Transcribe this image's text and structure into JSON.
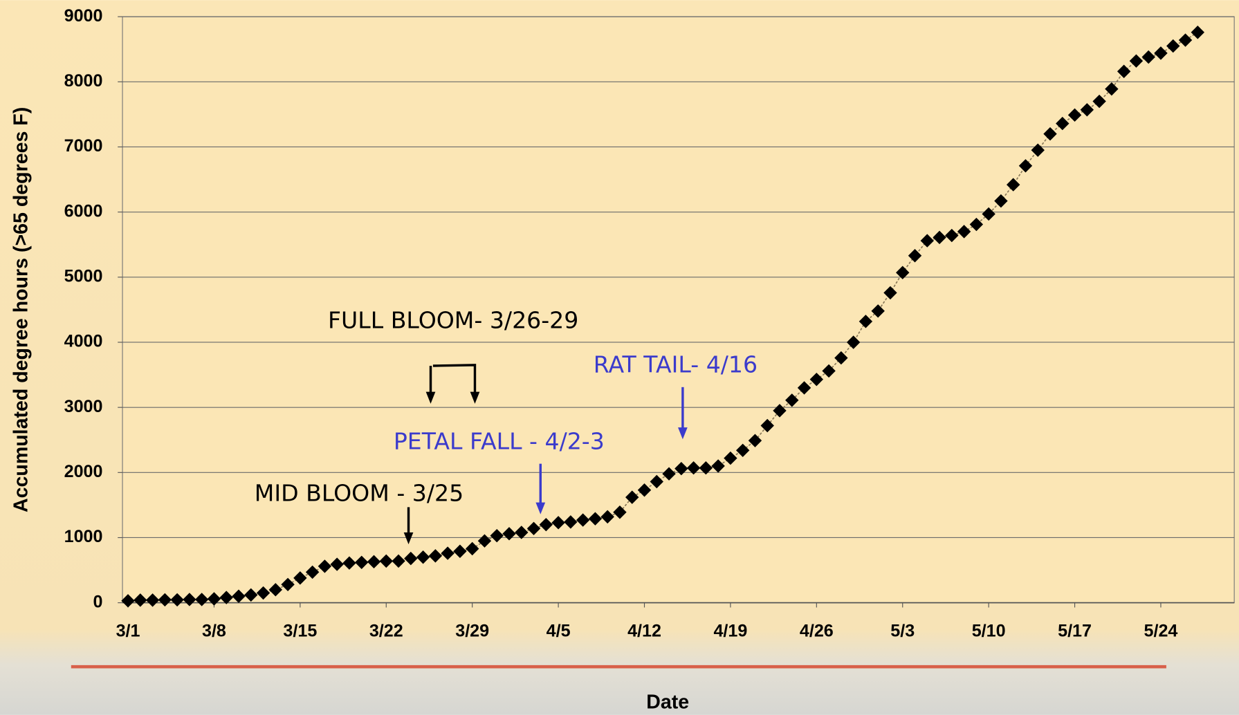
{
  "chart_data": {
    "type": "line",
    "x_label": "Date",
    "y_label": "Accumulated degree hours (>65 degrees F)",
    "categories": [
      "3/1",
      null,
      null,
      null,
      null,
      null,
      null,
      "3/8",
      null,
      null,
      null,
      null,
      null,
      null,
      "3/15",
      null,
      null,
      null,
      null,
      null,
      null,
      "3/22",
      null,
      null,
      null,
      null,
      null,
      null,
      "3/29",
      null,
      null,
      null,
      null,
      null,
      null,
      "4/5",
      null,
      null,
      null,
      null,
      null,
      null,
      "4/12",
      null,
      null,
      null,
      null,
      null,
      null,
      "4/19",
      null,
      null,
      null,
      null,
      null,
      null,
      "4/26",
      null,
      null,
      null,
      null,
      null,
      null,
      "5/3",
      null,
      null,
      null,
      null,
      null,
      null,
      "5/10",
      null,
      null,
      null,
      null,
      null,
      null,
      "5/17",
      null,
      null,
      null,
      null,
      null,
      null,
      "5/24",
      null,
      null,
      null
    ],
    "series": [
      {
        "name": "Accumulated degree hours",
        "color": "#000000",
        "values": [
          30,
          40,
          40,
          45,
          45,
          50,
          50,
          60,
          80,
          100,
          120,
          150,
          200,
          280,
          380,
          470,
          560,
          590,
          610,
          620,
          630,
          640,
          640,
          680,
          700,
          720,
          760,
          790,
          830,
          950,
          1030,
          1060,
          1080,
          1140,
          1200,
          1230,
          1240,
          1270,
          1290,
          1320,
          1390,
          1620,
          1730,
          1860,
          1980,
          2060,
          2070,
          2070,
          2100,
          2220,
          2340,
          2490,
          2720,
          2950,
          3110,
          3300,
          3430,
          3560,
          3760,
          4000,
          4320,
          4480,
          4760,
          5070,
          5330,
          5560,
          5610,
          5640,
          5700,
          5810,
          5970,
          6170,
          6420,
          6710,
          6950,
          7200,
          7360,
          7490,
          7570,
          7700,
          7890,
          8160,
          8320,
          8380,
          8440,
          8550,
          8640,
          8760
        ]
      }
    ],
    "ylim": [
      0,
      9000
    ],
    "yticks": [
      0,
      1000,
      2000,
      3000,
      4000,
      5000,
      6000,
      7000,
      8000,
      9000
    ],
    "grid": true,
    "annotations": [
      "FULL BLOOM- 3/26-29",
      "RAT TAIL- 4/16",
      "PETAL FALL - 4/2-3",
      "MID BLOOM - 3/25"
    ]
  }
}
